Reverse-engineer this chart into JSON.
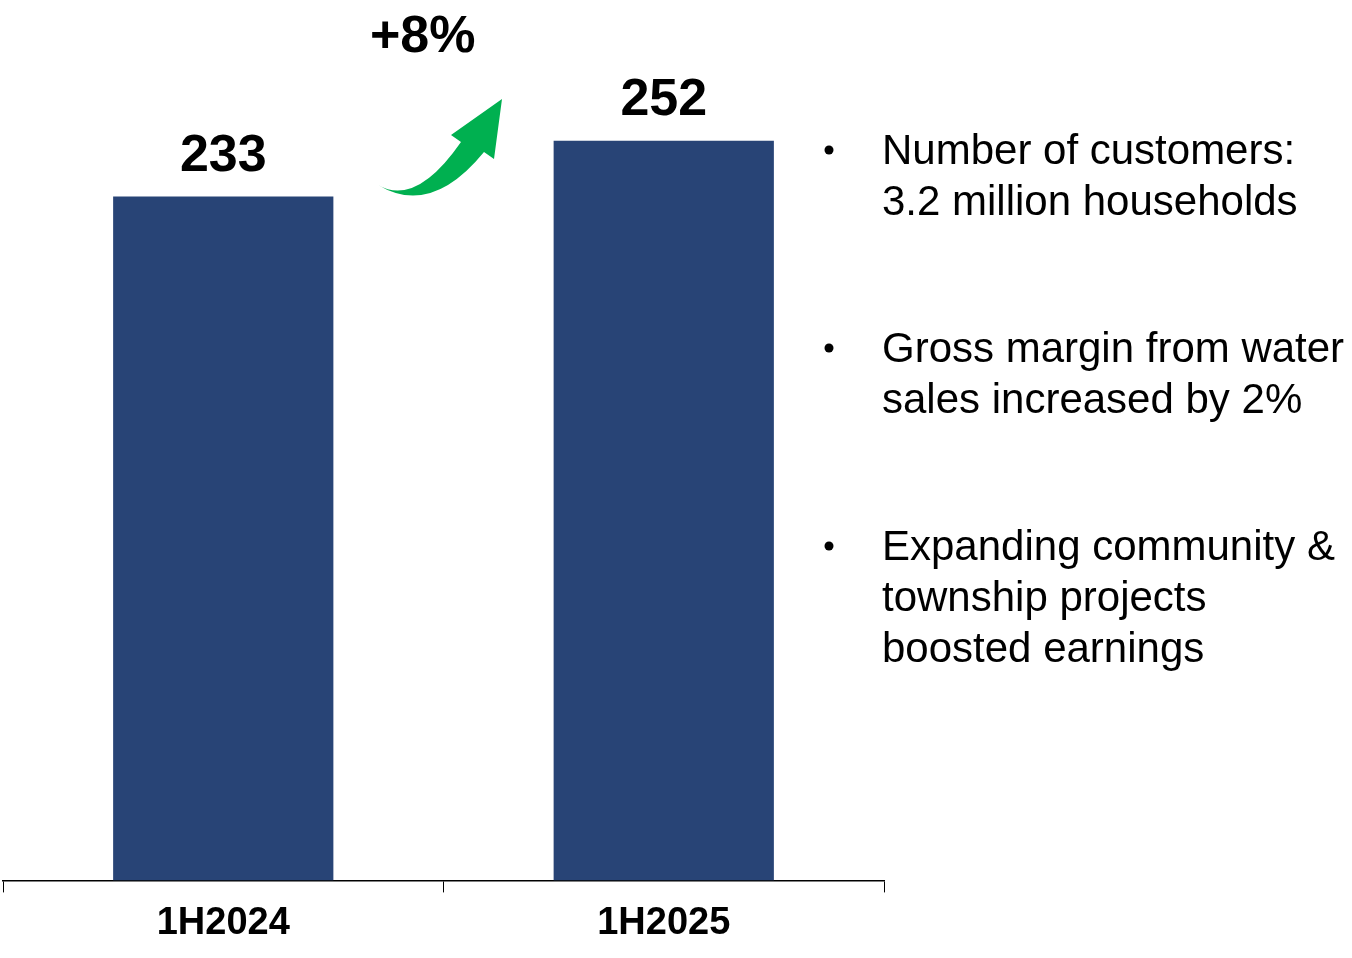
{
  "chart_data": {
    "type": "bar",
    "categories": [
      "1H2024",
      "1H2025"
    ],
    "values": [
      233,
      252
    ],
    "color": "#284476",
    "data_labels": true,
    "annotations": [
      "+8%",
      "Number of customers: 3.2 million households",
      "Gross margin from water sales increased by 2%",
      "Expanding community & township projects boosted earnings"
    ]
  }
}
